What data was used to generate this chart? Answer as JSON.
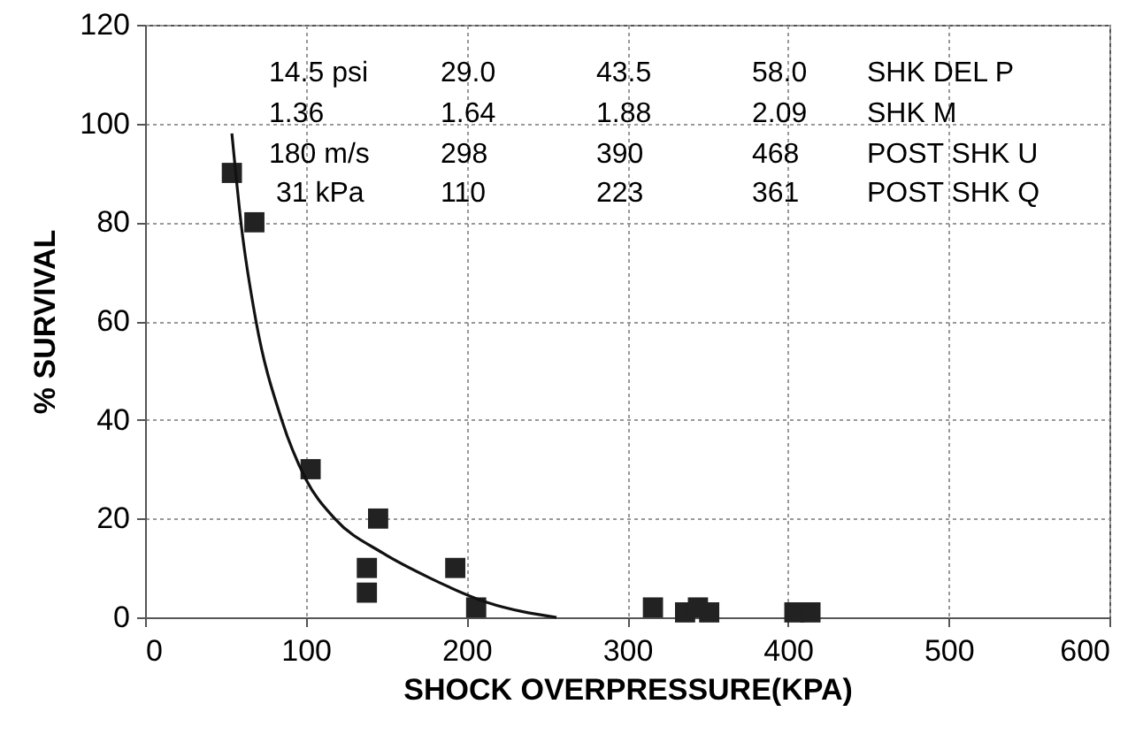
{
  "chart_data": {
    "type": "scatter",
    "xlabel": "SHOCK OVERPRESSURE(KPA)",
    "ylabel": "% SURVIVAL",
    "xlim": [
      0,
      600
    ],
    "xticks": [
      0,
      100,
      200,
      300,
      400,
      500,
      600
    ],
    "ylim": [
      0,
      120
    ],
    "yticks": [
      0,
      20,
      40,
      60,
      80,
      100,
      120
    ],
    "grid": true,
    "series": [
      {
        "marker": "square",
        "color": "#222222",
        "x": [
          54,
          68,
          103,
          145,
          138,
          138,
          193,
          206,
          316,
          336,
          344,
          351,
          404,
          414
        ],
        "values": [
          90,
          80,
          30,
          20,
          10,
          5,
          10,
          2,
          2,
          1,
          2,
          1,
          1,
          1
        ]
      },
      {
        "type": "line",
        "marker": "none",
        "color": "#111111",
        "x": [
          54,
          60,
          69,
          85,
          100,
          118,
          148,
          177,
          213,
          256
        ],
        "values": [
          98,
          79,
          60,
          40,
          28,
          20,
          13,
          8,
          3,
          0
        ]
      }
    ],
    "annotations": [
      "14.5 psi",
      "29.0",
      "43.5",
      "58.0",
      "SHK DEL P",
      "1.36",
      "1.64",
      "1.88",
      "2.09",
      "SHK M",
      "180 m/s",
      "298",
      "390",
      "468",
      "POST SHK U",
      "31 kPa",
      "110",
      "223",
      "361",
      "POST SHK Q"
    ]
  }
}
